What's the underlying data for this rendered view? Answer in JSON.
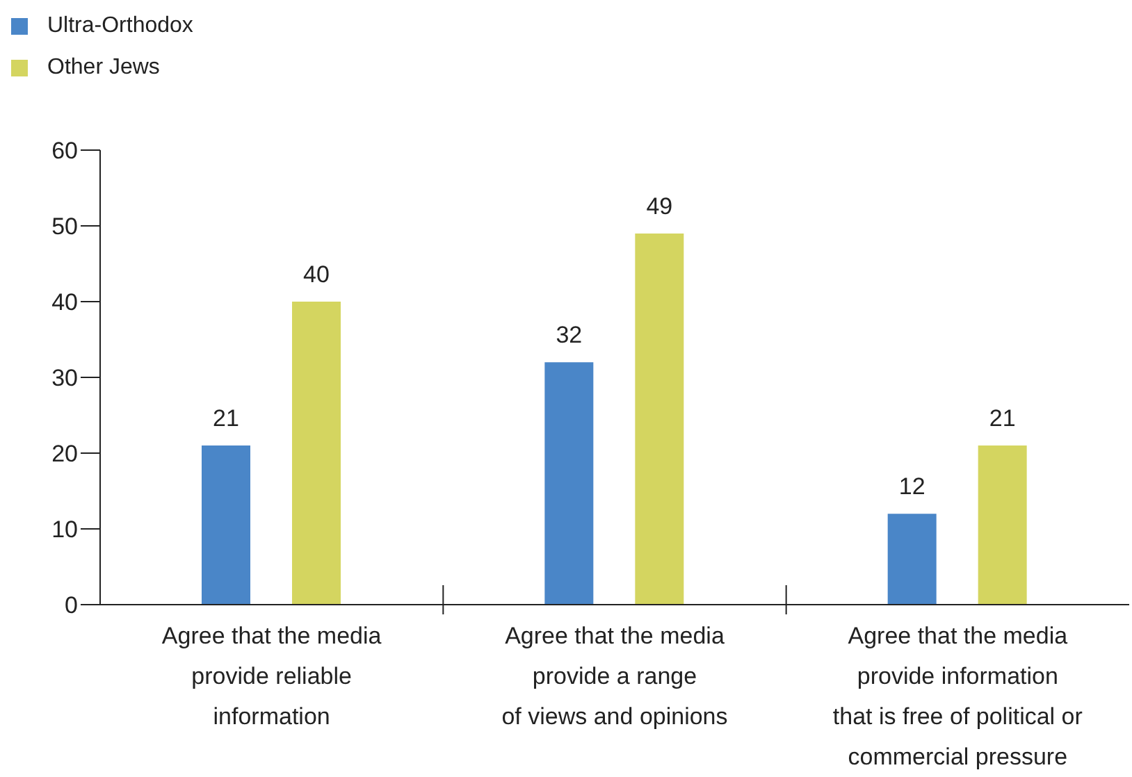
{
  "chart_data": {
    "type": "bar",
    "categories": [
      "Agree that the media\nprovide reliable\ninformation",
      "Agree that the media\nprovide a range\nof views and opinions",
      "Agree that the media\nprovide information\nthat is free of political or\ncommercial pressure"
    ],
    "series": [
      {
        "name": "Ultra-Orthodox",
        "color": "#4a86c8",
        "values": [
          21,
          32,
          12
        ]
      },
      {
        "name": "Other Jews",
        "color": "#d4d560",
        "values": [
          40,
          49,
          21
        ]
      }
    ],
    "ylim": [
      0,
      60
    ],
    "yticks": [
      0,
      10,
      20,
      30,
      40,
      50,
      60
    ],
    "grid": false,
    "legend": "top left",
    "data_labels": true
  }
}
